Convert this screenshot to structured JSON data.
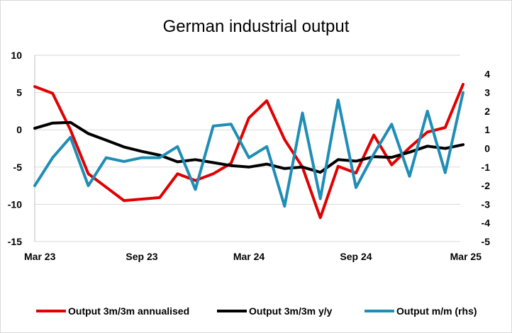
{
  "chart_data": {
    "type": "line",
    "title": "German industrial output",
    "x": [
      "Mar 23",
      "Apr 23",
      "May 23",
      "Jun 23",
      "Jul 23",
      "Aug 23",
      "Sep 23",
      "Oct 23",
      "Nov 23",
      "Dec 23",
      "Jan 24",
      "Feb 24",
      "Mar 24",
      "Apr 24",
      "May 24",
      "Jun 24",
      "Jul 24",
      "Aug 24",
      "Sep 24",
      "Oct 24",
      "Nov 24",
      "Dec 24",
      "Jan 25",
      "Feb 25",
      "Mar 25"
    ],
    "x_tick_labels": [
      "Mar 23",
      "Sep 23",
      "Mar 24",
      "Sep 24",
      "Mar 25"
    ],
    "y_left": {
      "ylim": [
        -15,
        10
      ],
      "ticks": [
        "10",
        "5",
        "0",
        "-5",
        "-10",
        "-15"
      ]
    },
    "y_right": {
      "ylim": [
        -5,
        5
      ],
      "ticks": [
        "4",
        "3",
        "2",
        "1",
        "0",
        "-1",
        "-2",
        "-3",
        "-4",
        "-5"
      ]
    },
    "series": [
      {
        "name": "Output 3m/3m annualised",
        "axis": "left",
        "color": "#e00000",
        "values": [
          5.8,
          4.9,
          0.0,
          -5.9,
          -7.7,
          -9.5,
          -9.3,
          -9.1,
          -5.9,
          -6.8,
          -5.9,
          -4.5,
          1.6,
          3.9,
          -1.3,
          -5.0,
          -11.8,
          -4.9,
          -5.8,
          -0.7,
          -4.7,
          -2.4,
          -0.3,
          0.3,
          6.1
        ]
      },
      {
        "name": "Output 3m/3m y/y",
        "axis": "left",
        "color": "#000000",
        "values": [
          0.2,
          0.9,
          1.0,
          -0.5,
          -1.4,
          -2.3,
          -2.9,
          -3.4,
          -4.3,
          -4.0,
          -4.4,
          -4.8,
          -5.0,
          -4.6,
          -5.2,
          -5.0,
          -5.7,
          -4.0,
          -4.2,
          -3.6,
          -3.7,
          -3.0,
          -2.2,
          -2.5,
          -2.0
        ]
      },
      {
        "name": "Output m/m (rhs)",
        "axis": "right",
        "color": "#1f8db5",
        "values": [
          -2.0,
          -0.5,
          0.6,
          -2.0,
          -0.5,
          -0.7,
          -0.5,
          -0.5,
          0.1,
          -2.2,
          1.2,
          1.3,
          -0.5,
          0.1,
          -3.1,
          1.9,
          -2.7,
          2.6,
          -2.1,
          -0.3,
          1.3,
          -1.5,
          2.0,
          -1.3,
          3.0
        ]
      }
    ],
    "grid": true,
    "legend_position": "bottom"
  }
}
